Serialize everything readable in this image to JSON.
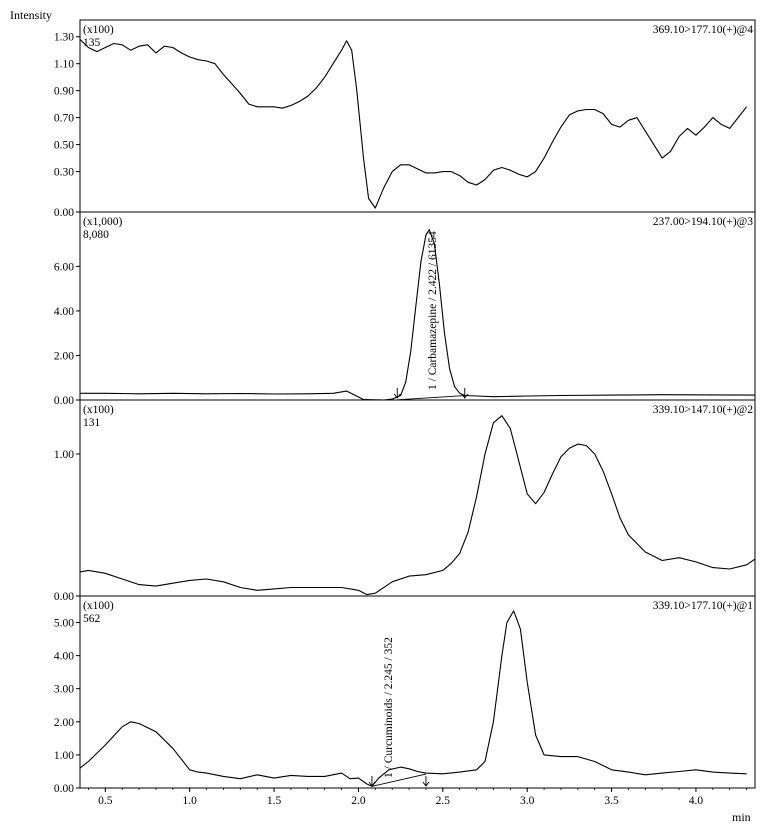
{
  "chart_data": {
    "type": "line",
    "y_axis_label": "Intensity",
    "x_axis_label": "min",
    "x_range": [
      0.35,
      4.35
    ],
    "x_ticks": [
      "0.5",
      "1.0",
      "1.5",
      "2.0",
      "2.5",
      "3.0",
      "3.5",
      "4.0"
    ],
    "x_tick_values": [
      0.5,
      1.0,
      1.5,
      2.0,
      2.5,
      3.0,
      3.5,
      4.0
    ],
    "panels": [
      {
        "scale": "(x100)",
        "max_label": "135",
        "transition": "369.10>177.10(+)@4",
        "ylim": [
          0,
          1.35
        ],
        "y_ticks": [
          "0.00",
          "0.30",
          "0.50",
          "0.70",
          "0.90",
          "1.10",
          "1.30"
        ],
        "y_tick_values": [
          0.0,
          0.3,
          0.5,
          0.7,
          0.9,
          1.1,
          1.3
        ],
        "x": [
          0.35,
          0.4,
          0.45,
          0.5,
          0.55,
          0.6,
          0.65,
          0.7,
          0.75,
          0.8,
          0.85,
          0.9,
          0.95,
          1.0,
          1.05,
          1.1,
          1.15,
          1.2,
          1.25,
          1.3,
          1.35,
          1.4,
          1.45,
          1.5,
          1.55,
          1.6,
          1.65,
          1.7,
          1.75,
          1.8,
          1.85,
          1.9,
          1.93,
          1.96,
          1.99,
          2.03,
          2.06,
          2.1,
          2.15,
          2.2,
          2.25,
          2.3,
          2.35,
          2.4,
          2.45,
          2.5,
          2.55,
          2.6,
          2.65,
          2.7,
          2.75,
          2.8,
          2.85,
          2.9,
          2.95,
          3.0,
          3.05,
          3.1,
          3.15,
          3.2,
          3.25,
          3.3,
          3.35,
          3.4,
          3.45,
          3.5,
          3.55,
          3.6,
          3.65,
          3.7,
          3.75,
          3.8,
          3.85,
          3.9,
          3.95,
          4.0,
          4.05,
          4.1,
          4.15,
          4.2,
          4.25,
          4.3
        ],
        "values": [
          1.28,
          1.22,
          1.19,
          1.22,
          1.25,
          1.24,
          1.2,
          1.23,
          1.24,
          1.18,
          1.23,
          1.22,
          1.18,
          1.15,
          1.13,
          1.12,
          1.1,
          1.02,
          0.95,
          0.88,
          0.8,
          0.78,
          0.78,
          0.78,
          0.77,
          0.79,
          0.82,
          0.86,
          0.92,
          1.0,
          1.1,
          1.2,
          1.27,
          1.2,
          0.9,
          0.4,
          0.1,
          0.03,
          0.18,
          0.3,
          0.35,
          0.35,
          0.32,
          0.29,
          0.29,
          0.3,
          0.3,
          0.27,
          0.22,
          0.2,
          0.24,
          0.31,
          0.33,
          0.31,
          0.28,
          0.26,
          0.3,
          0.4,
          0.52,
          0.63,
          0.72,
          0.75,
          0.76,
          0.76,
          0.73,
          0.65,
          0.63,
          0.68,
          0.7,
          0.6,
          0.5,
          0.4,
          0.45,
          0.56,
          0.62,
          0.57,
          0.63,
          0.7,
          0.65,
          0.62,
          0.7,
          0.78
        ]
      },
      {
        "scale": "(x1,000)",
        "max_label": "8,080",
        "transition": "237.00>194.10(+)@3",
        "ylim": [
          0,
          8.08
        ],
        "y_ticks": [
          "0.00",
          "2.00",
          "4.00",
          "6.00"
        ],
        "y_tick_values": [
          0.0,
          2.0,
          4.0,
          6.0
        ],
        "peak_label": "1 / Carbamazepine / 2.422 / 61354",
        "peak_label_x": 2.46,
        "markers_x": [
          2.23,
          2.63
        ],
        "x": [
          0.35,
          0.5,
          0.7,
          0.9,
          1.1,
          1.3,
          1.5,
          1.7,
          1.85,
          1.93,
          1.97,
          2.03,
          2.1,
          2.15,
          2.2,
          2.25,
          2.28,
          2.31,
          2.34,
          2.37,
          2.4,
          2.42,
          2.45,
          2.48,
          2.51,
          2.54,
          2.57,
          2.6,
          2.63,
          2.7,
          2.8,
          3.0,
          3.2,
          3.5,
          3.8,
          4.1,
          4.35
        ],
        "values": [
          0.3,
          0.3,
          0.28,
          0.3,
          0.28,
          0.29,
          0.27,
          0.28,
          0.3,
          0.4,
          0.25,
          0.02,
          0.01,
          0.0,
          0.04,
          0.2,
          0.8,
          2.2,
          4.2,
          6.2,
          7.4,
          7.65,
          7.0,
          5.2,
          3.0,
          1.4,
          0.6,
          0.3,
          0.2,
          0.18,
          0.15,
          0.18,
          0.2,
          0.22,
          0.24,
          0.23,
          0.22
        ],
        "baseline_x": [
          2.23,
          2.63
        ],
        "baseline_y": [
          0.01,
          0.2
        ]
      },
      {
        "scale": "(x100)",
        "max_label": "131",
        "transition": "339.10>147.10(+)@2",
        "ylim": [
          0,
          1.31
        ],
        "y_ticks": [
          "0.00",
          "1.00"
        ],
        "y_tick_values": [
          0.0,
          1.0
        ],
        "x": [
          0.35,
          0.4,
          0.5,
          0.6,
          0.7,
          0.8,
          0.9,
          1.0,
          1.1,
          1.2,
          1.3,
          1.4,
          1.5,
          1.6,
          1.7,
          1.8,
          1.9,
          2.0,
          2.05,
          2.1,
          2.2,
          2.3,
          2.4,
          2.5,
          2.55,
          2.6,
          2.65,
          2.7,
          2.75,
          2.8,
          2.85,
          2.9,
          2.95,
          3.0,
          3.05,
          3.1,
          3.15,
          3.2,
          3.25,
          3.3,
          3.35,
          3.4,
          3.45,
          3.5,
          3.55,
          3.6,
          3.7,
          3.8,
          3.9,
          4.0,
          4.1,
          4.2,
          4.3,
          4.35
        ],
        "values": [
          0.17,
          0.18,
          0.16,
          0.12,
          0.08,
          0.07,
          0.09,
          0.11,
          0.12,
          0.1,
          0.06,
          0.04,
          0.05,
          0.06,
          0.06,
          0.06,
          0.06,
          0.04,
          0.01,
          0.02,
          0.1,
          0.14,
          0.15,
          0.18,
          0.23,
          0.3,
          0.45,
          0.7,
          1.0,
          1.22,
          1.27,
          1.18,
          0.95,
          0.72,
          0.65,
          0.73,
          0.86,
          0.98,
          1.04,
          1.07,
          1.06,
          1.0,
          0.88,
          0.72,
          0.55,
          0.43,
          0.31,
          0.25,
          0.27,
          0.24,
          0.2,
          0.19,
          0.22,
          0.26
        ]
      },
      {
        "scale": "(x100)",
        "max_label": "562",
        "transition": "339.10>177.10(+)@1",
        "ylim": [
          0,
          5.62
        ],
        "y_ticks": [
          "0.00",
          "1.00",
          "2.00",
          "3.00",
          "4.00",
          "5.00"
        ],
        "y_tick_values": [
          0.0,
          1.0,
          2.0,
          3.0,
          4.0,
          5.0
        ],
        "peak_label": "1 / Curcuminoids / 2.245 / 352",
        "peak_label_x": 2.2,
        "markers_x": [
          2.08,
          2.4
        ],
        "x": [
          0.35,
          0.4,
          0.5,
          0.6,
          0.65,
          0.7,
          0.8,
          0.9,
          1.0,
          1.05,
          1.1,
          1.2,
          1.3,
          1.4,
          1.5,
          1.6,
          1.7,
          1.8,
          1.9,
          1.95,
          2.0,
          2.05,
          2.08,
          2.12,
          2.18,
          2.25,
          2.3,
          2.35,
          2.4,
          2.5,
          2.6,
          2.7,
          2.75,
          2.8,
          2.85,
          2.88,
          2.92,
          2.96,
          3.0,
          3.05,
          3.1,
          3.2,
          3.3,
          3.4,
          3.5,
          3.6,
          3.7,
          3.8,
          3.9,
          4.0,
          4.1,
          4.2,
          4.3
        ],
        "values": [
          0.6,
          0.8,
          1.3,
          1.85,
          2.0,
          1.95,
          1.7,
          1.2,
          0.55,
          0.48,
          0.45,
          0.35,
          0.28,
          0.4,
          0.3,
          0.38,
          0.35,
          0.35,
          0.45,
          0.28,
          0.3,
          0.12,
          0.05,
          0.3,
          0.55,
          0.63,
          0.58,
          0.5,
          0.45,
          0.43,
          0.48,
          0.55,
          0.8,
          2.0,
          4.0,
          5.0,
          5.35,
          4.8,
          3.2,
          1.6,
          1.0,
          0.95,
          0.95,
          0.8,
          0.55,
          0.48,
          0.4,
          0.45,
          0.5,
          0.55,
          0.48,
          0.45,
          0.43
        ],
        "baseline_x": [
          2.08,
          2.4
        ],
        "baseline_y": [
          0.05,
          0.42
        ]
      }
    ]
  }
}
